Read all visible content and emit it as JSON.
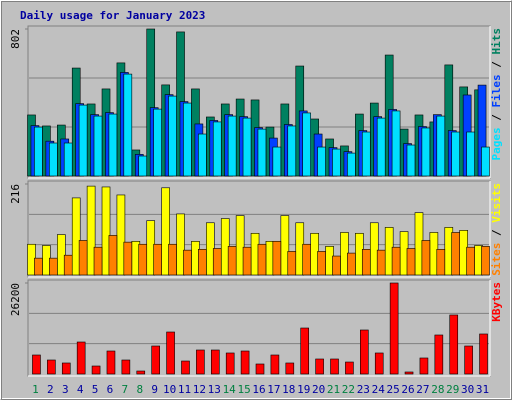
{
  "chart_data": {
    "type": "bar",
    "title": "Daily usage for January 2023",
    "categories": [
      "1",
      "2",
      "3",
      "4",
      "5",
      "6",
      "7",
      "8",
      "9",
      "10",
      "11",
      "12",
      "13",
      "14",
      "15",
      "16",
      "17",
      "18",
      "19",
      "20",
      "21",
      "22",
      "23",
      "24",
      "25",
      "26",
      "27",
      "28",
      "29",
      "30",
      "31"
    ],
    "category_label_colors": [
      "#008040",
      "#0000a0",
      "#0000a0",
      "#0000a0",
      "#0000a0",
      "#0000a0",
      "#008040",
      "#008040",
      "#0000a0",
      "#0000a0",
      "#0000a0",
      "#0000a0",
      "#0000a0",
      "#008040",
      "#008040",
      "#0000a0",
      "#0000a0",
      "#0000a0",
      "#0000a0",
      "#0000a0",
      "#008040",
      "#008040",
      "#0000a0",
      "#0000a0",
      "#0000a0",
      "#0000a0",
      "#0000a0",
      "#008040",
      "#008040",
      "#0000a0",
      "#0000a0"
    ],
    "legend_separator": "/",
    "panels": [
      {
        "ylim": [
          0,
          802
        ],
        "yticks": [
          802
        ],
        "series": [
          {
            "name": "Hits",
            "color": "#008060",
            "values": [
              333,
              273,
              278,
              589,
              393,
              475,
              617,
              142,
              802,
              497,
              786,
              475,
              322,
              393,
              420,
              415,
              267,
              393,
              600,
              311,
              202,
              164,
              338,
              398,
              660,
              256,
              333,
              295,
              606,
              486,
              470
            ]
          },
          {
            "name": "Files",
            "color": "#0040ff",
            "values": [
              275,
              190,
              202,
              395,
              335,
              346,
              565,
              118,
              373,
              444,
              406,
              284,
              303,
              335,
              324,
              264,
              207,
              281,
              355,
              229,
              155,
              133,
              248,
              324,
              363,
              177,
              270,
              335,
              248,
              442,
              496
            ]
          },
          {
            "name": "Pages",
            "color": "#00e0ff",
            "values": [
              267,
              180,
              180,
              387,
              327,
              338,
              556,
              109,
              365,
              436,
              398,
              229,
              295,
              327,
              316,
              256,
              158,
              273,
              344,
              158,
              147,
              125,
              240,
              316,
              355,
              169,
              262,
              327,
              240,
              240,
              158
            ]
          }
        ]
      },
      {
        "ylim": [
          0,
          216
        ],
        "yticks": [
          216
        ],
        "series": [
          {
            "name": "Visits",
            "color": "#ffff00",
            "values": [
              73,
              70,
              96,
              183,
              211,
              209,
              190,
              80,
              129,
              207,
              145,
              80,
              124,
              134,
              141,
              99,
              80,
              141,
              124,
              99,
              68,
              101,
              99,
              124,
              113,
              103,
              148,
              101,
              113,
              106,
              70
            ]
          },
          {
            "name": "Sites",
            "color": "#ff8000",
            "values": [
              40,
              40,
              47,
              82,
              66,
              94,
              78,
              73,
              73,
              73,
              59,
              61,
              63,
              68,
              66,
              73,
              80,
              56,
              73,
              56,
              45,
              52,
              61,
              59,
              66,
              63,
              82,
              61,
              101,
              66,
              68
            ]
          }
        ]
      },
      {
        "ylim": [
          0,
          26200
        ],
        "yticks": [
          26200
        ],
        "series": [
          {
            "name": "KBytes",
            "color": "#ff0000",
            "values": [
              5470,
              4030,
              3170,
              9210,
              2300,
              6620,
              4030,
              860,
              8060,
              12090,
              3740,
              6910,
              6910,
              6050,
              6620,
              2880,
              5470,
              3170,
              13240,
              4320,
              4320,
              3450,
              12670,
              6050,
              26200,
              580,
              4610,
              11230,
              16990,
              8060,
              11520
            ]
          }
        ]
      }
    ]
  }
}
